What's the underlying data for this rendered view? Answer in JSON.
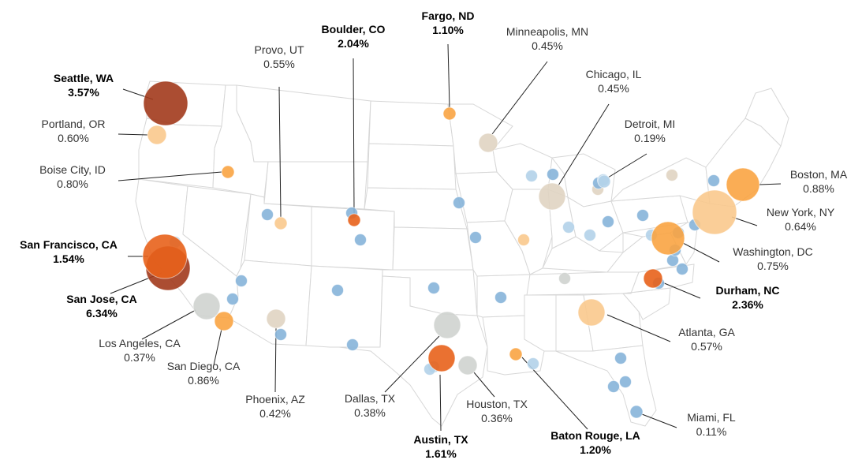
{
  "colors": {
    "high": "#a23a1c",
    "midhigh": "#e8621b",
    "mid": "#f9a443",
    "low": "#f9c98d",
    "neutral": "#e0d4c2",
    "gray": "#cfd3cf",
    "blue": "#86b4d9",
    "lightblue": "#b2d1e9"
  },
  "cities": [
    {
      "name": "Seattle, WA",
      "value": "3.57%",
      "bold": true,
      "color": "high",
      "size": "xl"
    },
    {
      "name": "Portland, OR",
      "value": "0.60%",
      "bold": false,
      "color": "low",
      "size": "s"
    },
    {
      "name": "Boise City, ID",
      "value": "0.80%",
      "bold": false,
      "color": "mid",
      "size": "xs"
    },
    {
      "name": "Provo, UT",
      "value": "0.55%",
      "bold": false,
      "color": "low",
      "size": "xs"
    },
    {
      "name": "Boulder, CO",
      "value": "2.04%",
      "bold": true,
      "color": "midhigh",
      "size": "xs"
    },
    {
      "name": "Fargo, ND",
      "value": "1.10%",
      "bold": true,
      "color": "mid",
      "size": "xs"
    },
    {
      "name": "Minneapolis, MN",
      "value": "0.45%",
      "bold": false,
      "color": "neutral",
      "size": "s"
    },
    {
      "name": "Chicago, IL",
      "value": "0.45%",
      "bold": false,
      "color": "neutral",
      "size": "m"
    },
    {
      "name": "Detroit, MI",
      "value": "0.19%",
      "bold": false,
      "color": "lightblue",
      "size": "xs"
    },
    {
      "name": "Boston, MA",
      "value": "0.88%",
      "bold": false,
      "color": "mid",
      "size": "l"
    },
    {
      "name": "New York, NY",
      "value": "0.64%",
      "bold": false,
      "color": "low",
      "size": "xl"
    },
    {
      "name": "Washington, DC",
      "value": "0.75%",
      "bold": false,
      "color": "mid",
      "size": "l"
    },
    {
      "name": "Durham, NC",
      "value": "2.36%",
      "bold": true,
      "color": "midhigh",
      "size": "s"
    },
    {
      "name": "Atlanta, GA",
      "value": "0.57%",
      "bold": false,
      "color": "low",
      "size": "m"
    },
    {
      "name": "Miami, FL",
      "value": "0.11%",
      "bold": false,
      "color": "blue",
      "size": "xs"
    },
    {
      "name": "Baton Rouge, LA",
      "value": "1.20%",
      "bold": true,
      "color": "mid",
      "size": "xs"
    },
    {
      "name": "Austin, TX",
      "value": "1.61%",
      "bold": true,
      "color": "midhigh",
      "size": "m"
    },
    {
      "name": "Houston, TX",
      "value": "0.36%",
      "bold": false,
      "color": "gray",
      "size": "s"
    },
    {
      "name": "Dallas, TX",
      "value": "0.38%",
      "bold": false,
      "color": "gray",
      "size": "m"
    },
    {
      "name": "Phoenix, AZ",
      "value": "0.42%",
      "bold": false,
      "color": "neutral",
      "size": "s"
    },
    {
      "name": "San Diego, CA",
      "value": "0.86%",
      "bold": false,
      "color": "mid",
      "size": "s"
    },
    {
      "name": "Los Angeles, CA",
      "value": "0.37%",
      "bold": false,
      "color": "gray",
      "size": "m"
    },
    {
      "name": "San Jose, CA",
      "value": "6.34%",
      "bold": true,
      "color": "high",
      "size": "xl"
    },
    {
      "name": "San Francisco, CA",
      "value": "1.54%",
      "bold": true,
      "color": "midhigh",
      "size": "xl"
    }
  ],
  "other_markers": [
    {
      "color": "lightblue"
    },
    {
      "color": "blue"
    },
    {
      "color": "blue"
    },
    {
      "color": "blue"
    },
    {
      "color": "blue"
    },
    {
      "color": "blue"
    },
    {
      "color": "blue"
    },
    {
      "color": "blue"
    },
    {
      "color": "blue"
    },
    {
      "color": "lightblue"
    },
    {
      "color": "blue"
    },
    {
      "color": "blue"
    },
    {
      "color": "lightblue"
    },
    {
      "color": "blue"
    },
    {
      "color": "blue"
    },
    {
      "color": "blue"
    },
    {
      "color": "gray"
    },
    {
      "color": "lightblue"
    },
    {
      "color": "blue"
    },
    {
      "color": "lightblue"
    },
    {
      "color": "blue"
    },
    {
      "color": "lightblue"
    },
    {
      "color": "blue"
    },
    {
      "color": "neutral"
    },
    {
      "color": "lightblue"
    },
    {
      "color": "blue"
    },
    {
      "color": "blue"
    },
    {
      "color": "blue"
    },
    {
      "color": "blue"
    },
    {
      "color": "blue"
    },
    {
      "color": "blue"
    },
    {
      "color": "blue"
    },
    {
      "color": "blue"
    },
    {
      "color": "low"
    },
    {
      "color": "neutral"
    },
    {
      "color": "blue"
    },
    {
      "color": "lightblue"
    },
    {
      "color": "blue"
    },
    {
      "color": "lightblue"
    }
  ]
}
